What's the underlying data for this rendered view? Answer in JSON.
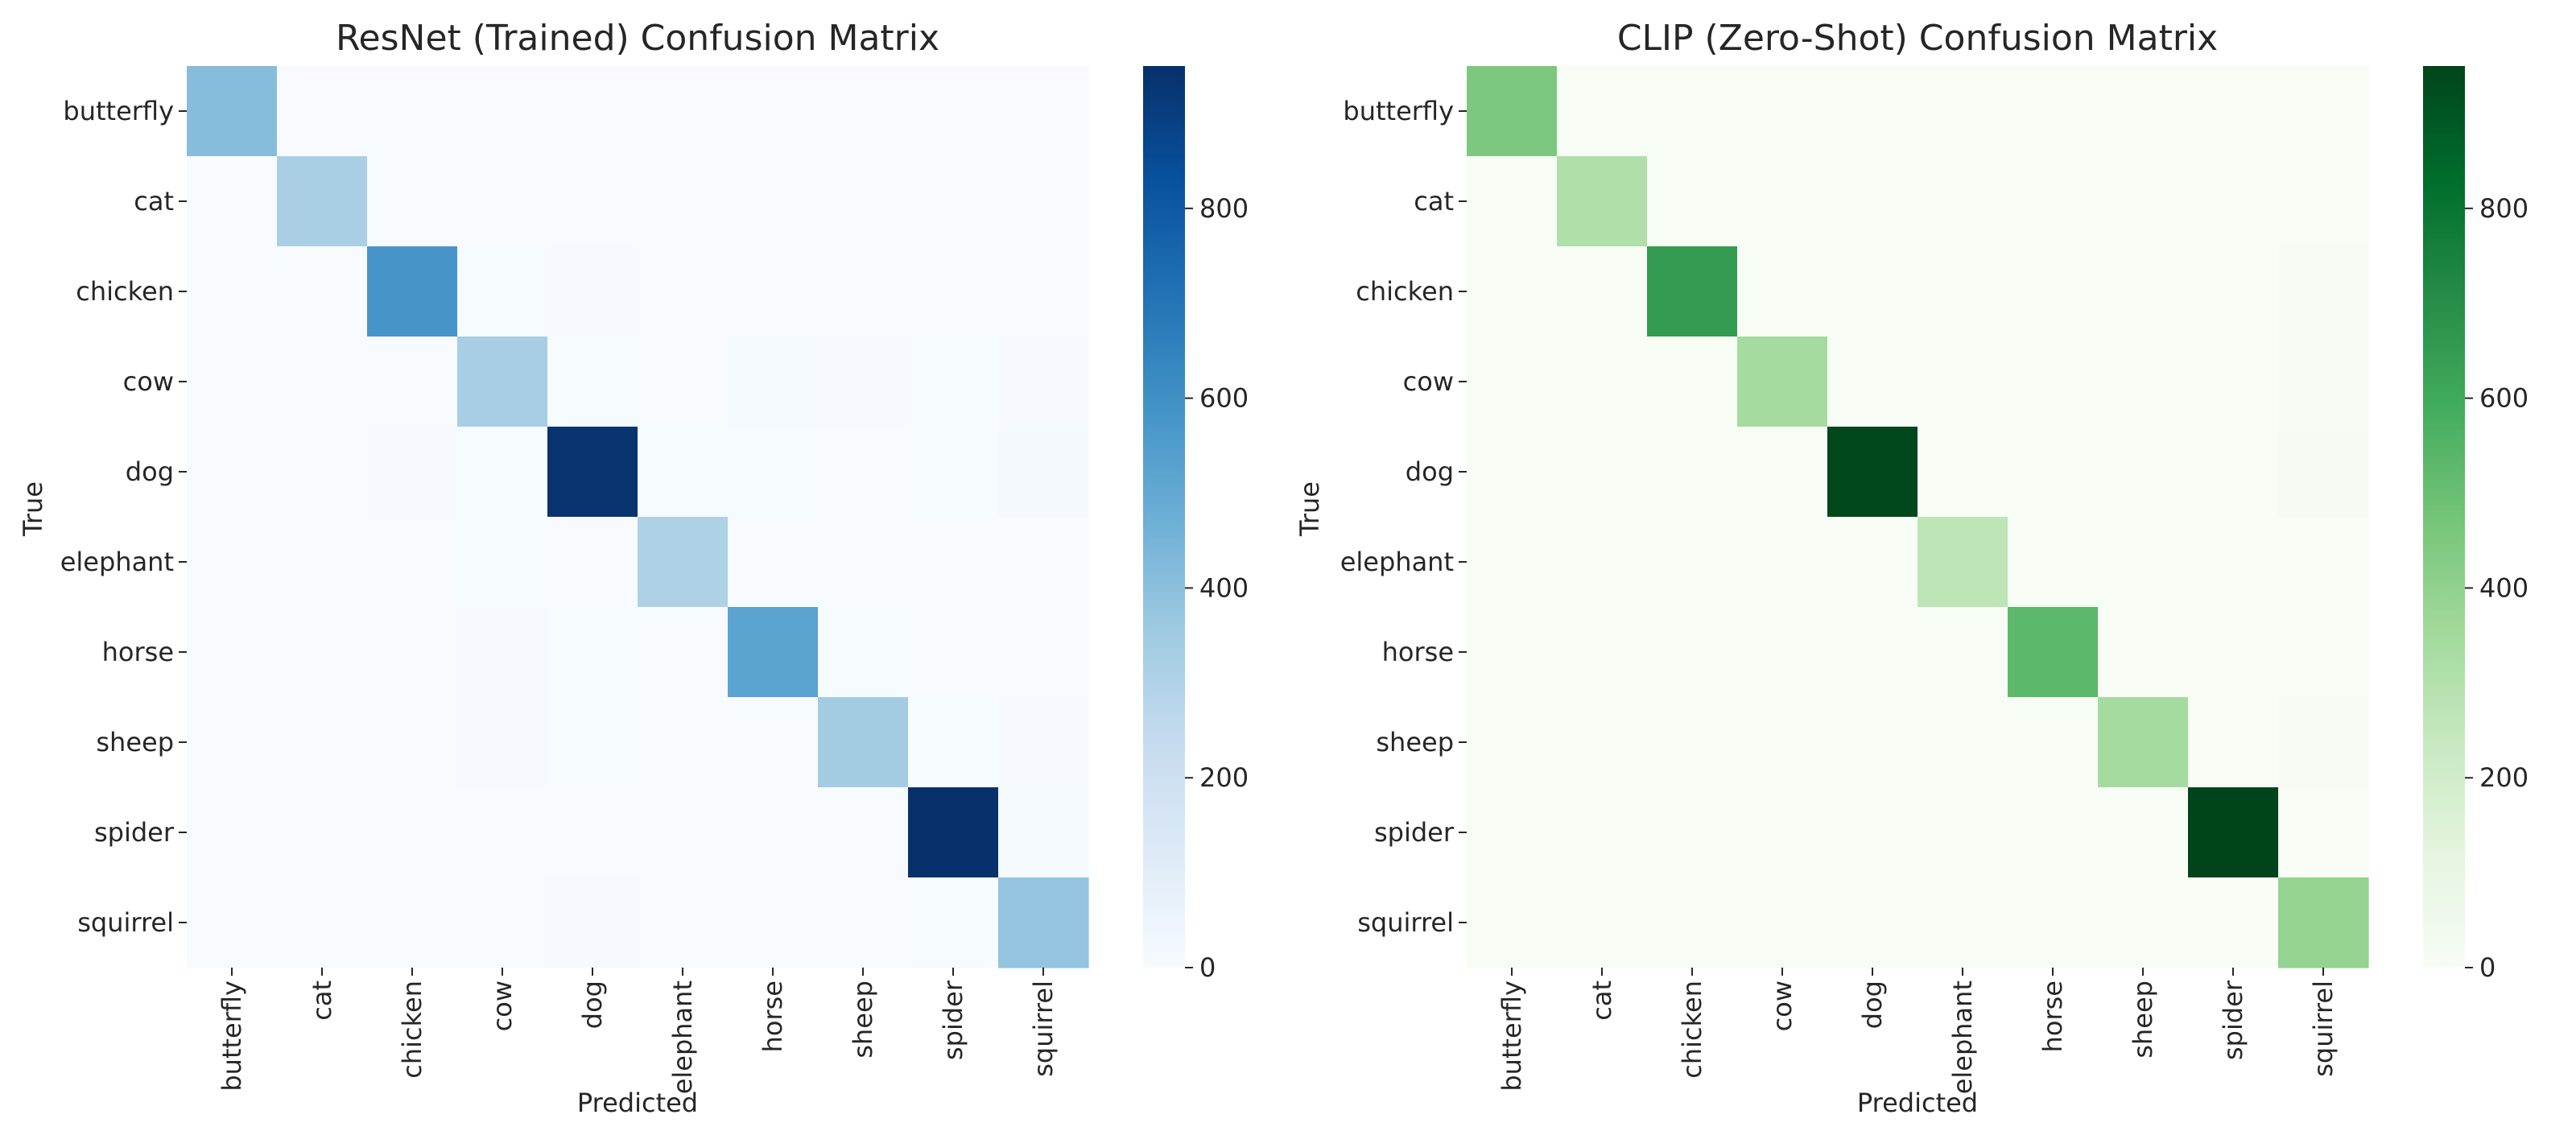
{
  "chart_data": [
    {
      "type": "heatmap",
      "title": "ResNet (Trained) Confusion Matrix",
      "xlabel": "Predicted",
      "ylabel": "True",
      "colormap": "Blues",
      "colors": [
        "#f7fbff",
        "#deebf7",
        "#c6dbef",
        "#9ecae1",
        "#6baed6",
        "#4292c6",
        "#2171b5",
        "#08519c",
        "#08306b"
      ],
      "x_categories": [
        "butterfly",
        "cat",
        "chicken",
        "cow",
        "dog",
        "elephant",
        "horse",
        "sheep",
        "spider",
        "squirrel"
      ],
      "y_categories": [
        "butterfly",
        "cat",
        "chicken",
        "cow",
        "dog",
        "elephant",
        "horse",
        "sheep",
        "spider",
        "squirrel"
      ],
      "matrix": [
        [
          410,
          1,
          1,
          1,
          1,
          1,
          1,
          1,
          2,
          2
        ],
        [
          1,
          320,
          1,
          1,
          2,
          1,
          1,
          1,
          1,
          1
        ],
        [
          1,
          2,
          580,
          3,
          4,
          1,
          1,
          2,
          2,
          2
        ],
        [
          1,
          1,
          2,
          330,
          3,
          2,
          8,
          6,
          3,
          5
        ],
        [
          2,
          2,
          4,
          3,
          940,
          3,
          3,
          2,
          3,
          12
        ],
        [
          1,
          1,
          2,
          3,
          2,
          310,
          2,
          1,
          1,
          2
        ],
        [
          1,
          1,
          1,
          4,
          3,
          1,
          520,
          3,
          1,
          2
        ],
        [
          1,
          1,
          1,
          4,
          3,
          1,
          2,
          340,
          3,
          6
        ],
        [
          1,
          1,
          1,
          1,
          2,
          1,
          1,
          2,
          950,
          8
        ],
        [
          2,
          2,
          2,
          2,
          4,
          2,
          2,
          2,
          3,
          380
        ]
      ],
      "vmin": 0,
      "vmax": 950,
      "colorbar_ticks": [
        0,
        200,
        400,
        600,
        800
      ]
    },
    {
      "type": "heatmap",
      "title": "CLIP (Zero-Shot) Confusion Matrix",
      "xlabel": "Predicted",
      "ylabel": "True",
      "colormap": "Greens",
      "colors": [
        "#f7fcf5",
        "#e5f5e0",
        "#c7e9c0",
        "#a1d99b",
        "#74c476",
        "#41ab5d",
        "#238b45",
        "#006d2c",
        "#00441b"
      ],
      "x_categories": [
        "butterfly",
        "cat",
        "chicken",
        "cow",
        "dog",
        "elephant",
        "horse",
        "sheep",
        "spider",
        "squirrel"
      ],
      "y_categories": [
        "butterfly",
        "cat",
        "chicken",
        "cow",
        "dog",
        "elephant",
        "horse",
        "sheep",
        "spider",
        "squirrel"
      ],
      "matrix": [
        [
          450,
          1,
          1,
          1,
          1,
          1,
          1,
          1,
          1,
          1
        ],
        [
          1,
          310,
          1,
          1,
          1,
          1,
          1,
          1,
          1,
          1
        ],
        [
          1,
          1,
          650,
          1,
          1,
          1,
          1,
          1,
          1,
          4
        ],
        [
          1,
          1,
          1,
          340,
          1,
          1,
          1,
          1,
          1,
          4
        ],
        [
          1,
          1,
          1,
          1,
          940,
          1,
          1,
          1,
          1,
          10
        ],
        [
          1,
          1,
          1,
          1,
          1,
          270,
          1,
          1,
          1,
          2
        ],
        [
          1,
          1,
          1,
          1,
          1,
          1,
          530,
          1,
          1,
          2
        ],
        [
          1,
          1,
          1,
          1,
          1,
          1,
          1,
          340,
          1,
          8
        ],
        [
          1,
          1,
          1,
          1,
          1,
          1,
          1,
          1,
          950,
          2
        ],
        [
          1,
          1,
          1,
          1,
          1,
          1,
          1,
          1,
          1,
          390
        ]
      ],
      "vmin": 0,
      "vmax": 950,
      "colorbar_ticks": [
        0,
        200,
        400,
        600,
        800
      ]
    }
  ]
}
